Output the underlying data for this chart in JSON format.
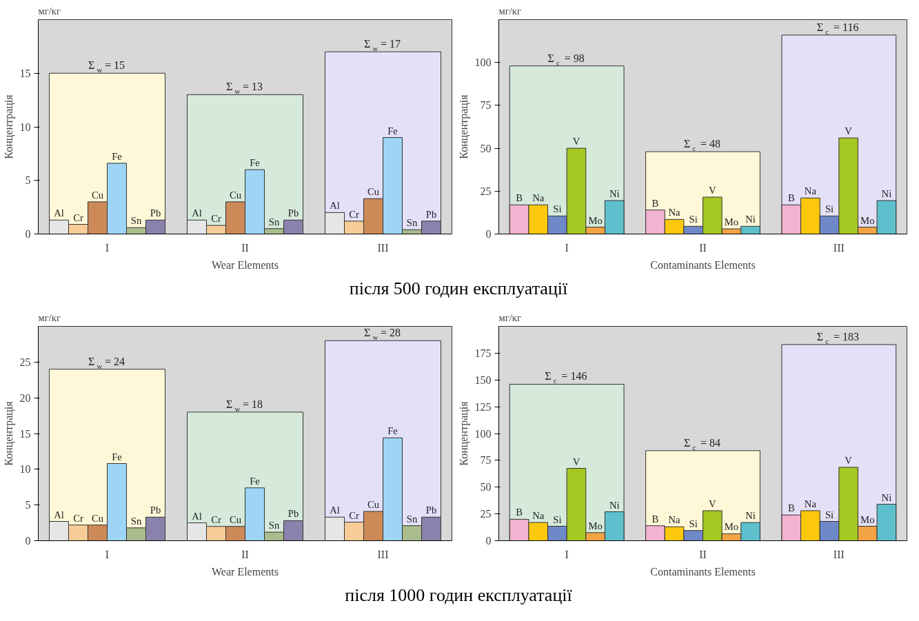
{
  "chart_data": [
    {
      "type": "bar",
      "title": "після 500 годин експлуатації",
      "xlabel": "Wear Elements",
      "ylabel": "Концентрація",
      "annotations": [
        "мг/кг"
      ],
      "categories": [
        "I",
        "II",
        "III"
      ],
      "ylim": [
        0,
        20
      ],
      "yticks": [
        0,
        5,
        10,
        15
      ],
      "series": [
        {
          "type": "bar",
          "colors": [
            "#fff8d8",
            "#d6eadb",
            "#e4e0f8"
          ],
          "values": [
            15,
            13,
            17
          ],
          "value_labels": [
            "Σ$_{w}$ = 15",
            "Σ$_{w}$ = 13",
            "Σ$_{w}$ = 17"
          ]
        },
        {
          "name": "Al",
          "color": "#e6e6e6",
          "values": [
            1.3,
            1.3,
            2.0
          ]
        },
        {
          "name": "Cr",
          "color": "#f8cc98",
          "values": [
            0.9,
            0.8,
            1.2
          ]
        },
        {
          "name": "Cu",
          "color": "#cc8a58",
          "values": [
            3.0,
            3.0,
            3.3
          ]
        },
        {
          "name": "Fe",
          "color": "#9ed4f6",
          "values": [
            6.6,
            6.0,
            9.0
          ]
        },
        {
          "name": "Sn",
          "color": "#a8bc8c",
          "values": [
            0.6,
            0.5,
            0.4
          ]
        },
        {
          "name": "Pb",
          "color": "#8a82ac",
          "values": [
            1.3,
            1.3,
            1.2
          ]
        }
      ]
    },
    {
      "type": "bar",
      "xlabel": "Contaminants Elements",
      "ylabel": "Концентрація",
      "annotations": [
        "мг/кг"
      ],
      "categories": [
        "I",
        "II",
        "III"
      ],
      "ylim": [
        0,
        125
      ],
      "yticks": [
        0,
        25,
        50,
        75,
        100
      ],
      "series": [
        {
          "type": "bar",
          "colors": [
            "#d6eadb",
            "#fff8d8",
            "#e4e0f8"
          ],
          "values": [
            98,
            48,
            116
          ],
          "value_labels": [
            "Σ$_{c}$ = 98",
            "Σ$_{c}$ = 48",
            "Σ$_{c}$ = 116"
          ]
        },
        {
          "name": "B",
          "color": "#f2b2d0",
          "values": [
            17,
            14,
            17
          ]
        },
        {
          "name": "Na",
          "color": "#fcc80c",
          "values": [
            17,
            8.5,
            21
          ]
        },
        {
          "name": "Si",
          "color": "#6e88c8",
          "values": [
            10.5,
            4.5,
            10.5
          ]
        },
        {
          "name": "V",
          "color": "#a6c822",
          "values": [
            50,
            21.5,
            56
          ]
        },
        {
          "name": "Mo",
          "color": "#f2a444",
          "values": [
            4,
            3,
            4
          ]
        },
        {
          "name": "Ni",
          "color": "#5ec0cc",
          "values": [
            19.5,
            4.5,
            19.5
          ]
        }
      ]
    },
    {
      "type": "bar",
      "title": "після 1000 годин експлуатації",
      "xlabel": "Wear Elements",
      "ylabel": "Концентрація",
      "annotations": [
        "мг/кг"
      ],
      "categories": [
        "I",
        "II",
        "III"
      ],
      "ylim": [
        0,
        30
      ],
      "yticks": [
        0,
        5,
        10,
        15,
        20,
        25
      ],
      "series": [
        {
          "type": "bar",
          "colors": [
            "#fff8d8",
            "#d6eadb",
            "#e4e0f8"
          ],
          "values": [
            24,
            18,
            28
          ],
          "value_labels": [
            "Σ$_{w}$ = 24",
            "Σ$_{w}$ = 18",
            "Σ$_{w}$ = 28"
          ]
        },
        {
          "name": "Al",
          "color": "#e6e6e6",
          "values": [
            2.7,
            2.5,
            3.3
          ]
        },
        {
          "name": "Cr",
          "color": "#f8cc98",
          "values": [
            2.2,
            2.0,
            2.6
          ]
        },
        {
          "name": "Cu",
          "color": "#cc8a58",
          "values": [
            2.2,
            2.0,
            4.1
          ]
        },
        {
          "name": "Fe",
          "color": "#9ed4f6",
          "values": [
            10.8,
            7.4,
            14.4
          ]
        },
        {
          "name": "Sn",
          "color": "#a8bc8c",
          "values": [
            1.8,
            1.2,
            2.1
          ]
        },
        {
          "name": "Pb",
          "color": "#8a82ac",
          "values": [
            3.3,
            2.8,
            3.3
          ]
        }
      ]
    },
    {
      "type": "bar",
      "xlabel": "Contaminants Elements",
      "ylabel": "Концентрація",
      "annotations": [
        "мг/кг"
      ],
      "categories": [
        "I",
        "II",
        "III"
      ],
      "ylim": [
        0,
        200
      ],
      "yticks": [
        0,
        25,
        50,
        75,
        100,
        125,
        150,
        175
      ],
      "series": [
        {
          "type": "bar",
          "colors": [
            "#d6eadb",
            "#fff8d8",
            "#e4e0f8"
          ],
          "values": [
            146,
            84,
            183
          ],
          "value_labels": [
            "Σ$_{c}$ = 146",
            "Σ$_{c}$ = 84",
            "Σ$_{c}$ = 183"
          ]
        },
        {
          "name": "B",
          "color": "#f2b2d0",
          "values": [
            20,
            14,
            24
          ]
        },
        {
          "name": "Na",
          "color": "#fcc80c",
          "values": [
            17,
            13,
            28
          ]
        },
        {
          "name": "Si",
          "color": "#6e88c8",
          "values": [
            13.5,
            9.5,
            18
          ]
        },
        {
          "name": "V",
          "color": "#a6c822",
          "values": [
            67.5,
            28,
            68.5
          ]
        },
        {
          "name": "Mo",
          "color": "#f2a444",
          "values": [
            7.5,
            6.5,
            13.5
          ]
        },
        {
          "name": "Ni",
          "color": "#5ec0cc",
          "values": [
            27,
            17,
            34
          ]
        }
      ]
    }
  ]
}
